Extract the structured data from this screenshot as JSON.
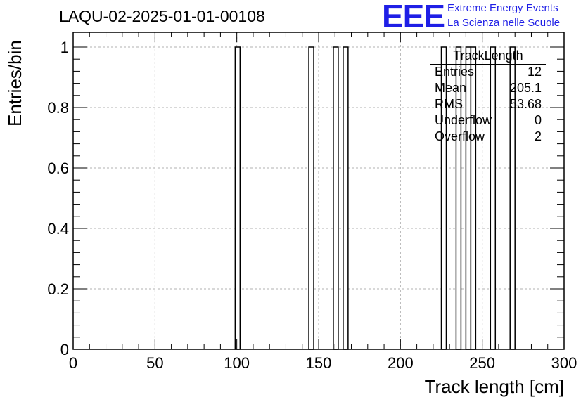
{
  "title": "LAQU-02-2025-01-01-00108",
  "logo": {
    "mark": "EEE",
    "line1": "Extreme Energy Events",
    "line2": "La Scienza nelle Scuole",
    "color": "#1f1fe6"
  },
  "stats": {
    "title": "TrackLength",
    "rows": [
      {
        "label": "Entries",
        "value": "12"
      },
      {
        "label": "Mean",
        "value": "205.1"
      },
      {
        "label": "RMS",
        "value": "53.68"
      },
      {
        "label": "Underflow",
        "value": "0"
      },
      {
        "label": "Overflow",
        "value": "2"
      }
    ]
  },
  "chart_data": {
    "type": "bar",
    "title": "LAQU-02-2025-01-01-00108",
    "xlabel": "Track length [cm]",
    "ylabel": "Entries/bin",
    "xlim": [
      0,
      300
    ],
    "ylim": [
      0,
      1
    ],
    "grid": true,
    "bin_width": 3,
    "x_ticks": [
      "0",
      "50",
      "100",
      "150",
      "200",
      "250",
      "300"
    ],
    "y_ticks": [
      "0",
      "0.2",
      "0.4",
      "0.6",
      "0.8",
      "1"
    ],
    "bins": [
      {
        "x_low": 99,
        "x_high": 102,
        "value": 1
      },
      {
        "x_low": 144,
        "x_high": 147,
        "value": 1
      },
      {
        "x_low": 159,
        "x_high": 162,
        "value": 1
      },
      {
        "x_low": 165,
        "x_high": 168,
        "value": 1
      },
      {
        "x_low": 225,
        "x_high": 228,
        "value": 1
      },
      {
        "x_low": 234,
        "x_high": 237,
        "value": 1
      },
      {
        "x_low": 240,
        "x_high": 243,
        "value": 1
      },
      {
        "x_low": 243,
        "x_high": 246,
        "value": 1
      },
      {
        "x_low": 255,
        "x_high": 258,
        "value": 1
      },
      {
        "x_low": 267,
        "x_high": 270,
        "value": 1
      }
    ]
  }
}
